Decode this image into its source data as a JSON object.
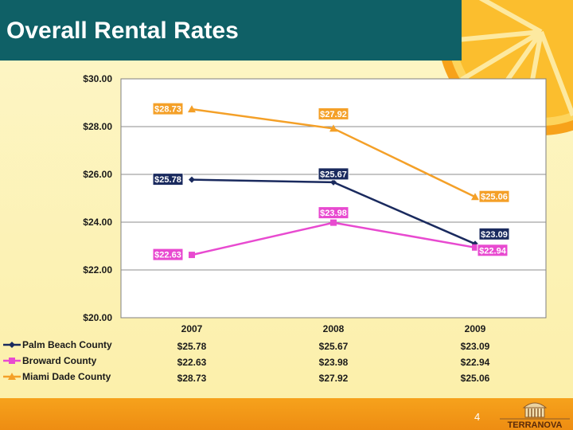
{
  "slide": {
    "title": "Overall Rental Rates",
    "page_number": "4",
    "logo_text": "TERRANOVA"
  },
  "colors": {
    "title_bar": "#0f6066",
    "background": "#fdf3b8",
    "footer": "#f39a18",
    "palm_beach": "#1a2a5e",
    "broward": "#e84ad0",
    "miami_dade": "#f4a028"
  },
  "chart_data": {
    "type": "line",
    "categories": [
      "2007",
      "2008",
      "2009"
    ],
    "ylim": [
      20,
      30
    ],
    "yticks": [
      "$20.00",
      "$22.00",
      "$24.00",
      "$26.00",
      "$28.00",
      "$30.00"
    ],
    "grid": true,
    "legend": "table-below",
    "series": [
      {
        "name": "Palm Beach County",
        "marker": "diamond",
        "color": "#1a2a5e",
        "values": [
          25.78,
          25.67,
          23.09
        ],
        "labels": [
          "$25.78",
          "$25.67",
          "$23.09"
        ]
      },
      {
        "name": "Broward County",
        "marker": "square",
        "color": "#e84ad0",
        "values": [
          22.63,
          23.98,
          22.94
        ],
        "labels": [
          "$22.63",
          "$23.98",
          "$22.94"
        ]
      },
      {
        "name": "Miami Dade County",
        "marker": "triangle",
        "color": "#f4a028",
        "values": [
          28.73,
          27.92,
          25.06
        ],
        "labels": [
          "$28.73",
          "$27.92",
          "$25.06"
        ]
      }
    ]
  }
}
